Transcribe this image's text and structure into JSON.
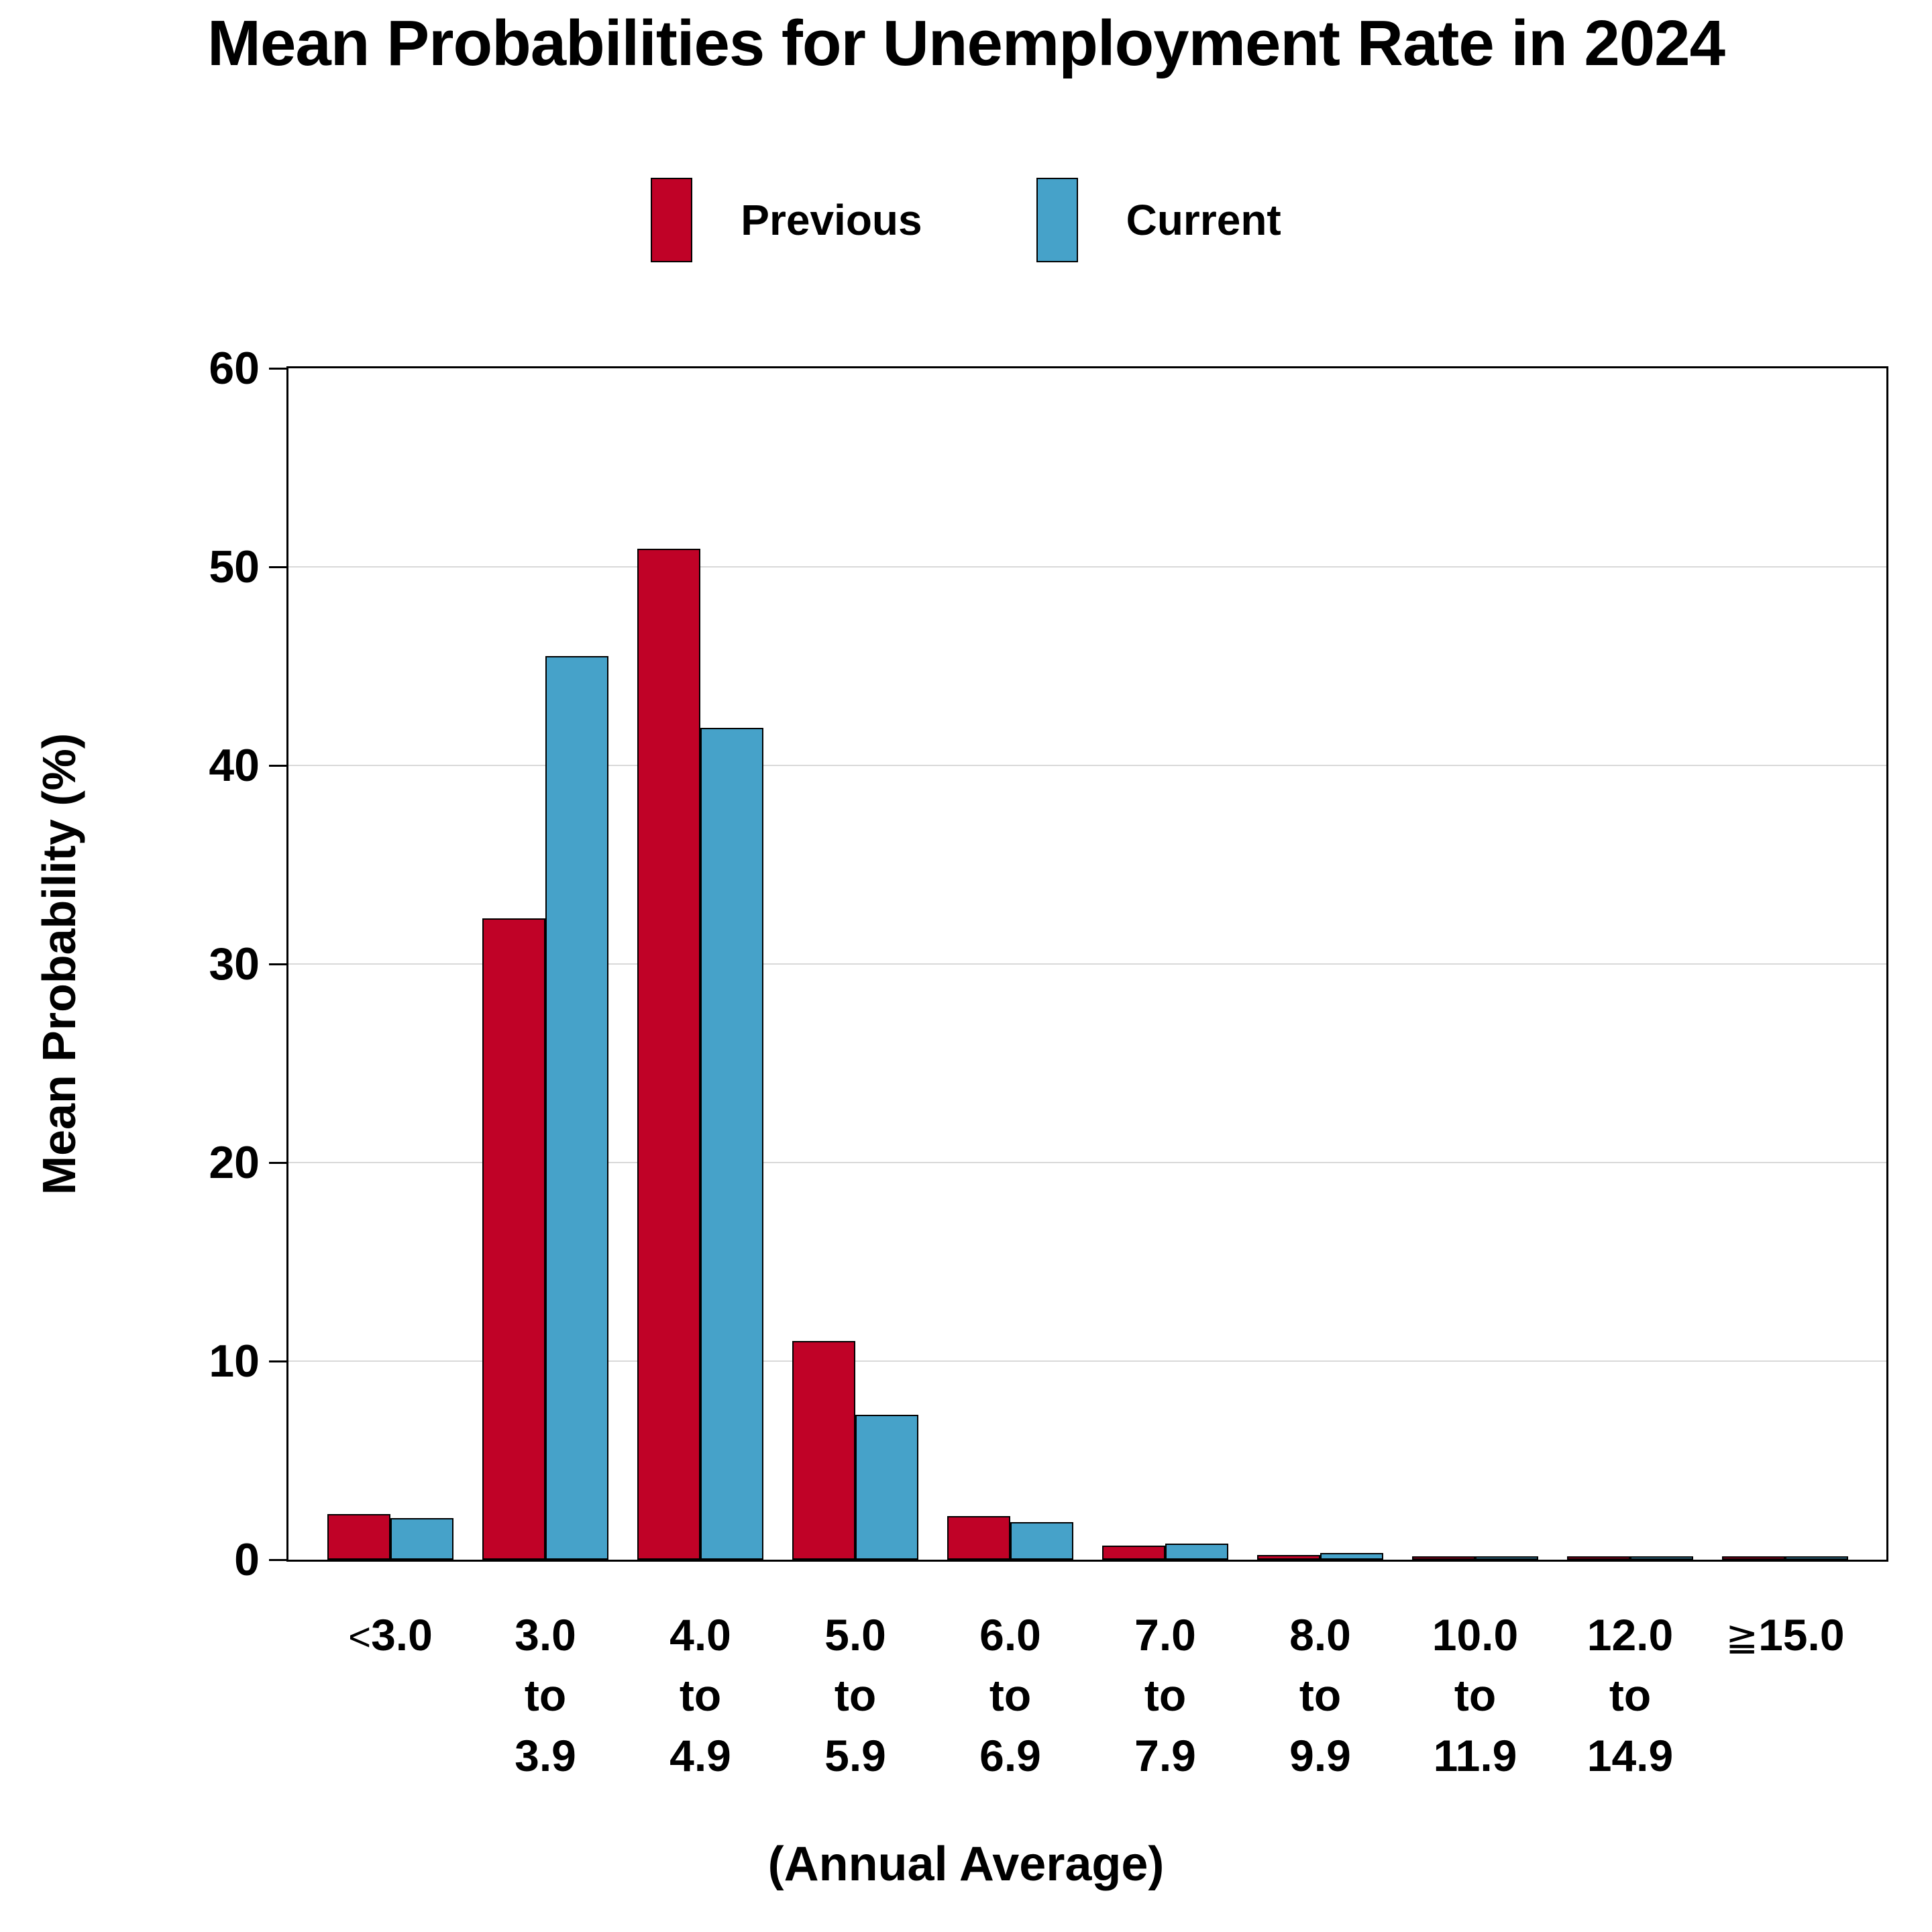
{
  "page": {
    "title": "Mean Probabilities for Unemployment Rate in 2024"
  },
  "legend": {
    "items": [
      {
        "label": "Previous",
        "color": "#c00227"
      },
      {
        "label": "Current",
        "color": "#46a2c9"
      }
    ]
  },
  "axes": {
    "y_title": "Mean Probability (%)",
    "x_title": "(Annual Average)",
    "y_ticks": [
      "0",
      "10",
      "20",
      "30",
      "40",
      "50",
      "60"
    ]
  },
  "colors": {
    "previous": "#c00227",
    "current": "#46a2c9",
    "grid": "#d9d9d9",
    "axis": "#000000",
    "text": "#000000",
    "background": "#ffffff"
  },
  "chart_data": {
    "type": "bar",
    "title": "Mean Probabilities for Unemployment Rate in 2024",
    "categories": [
      "<3.0",
      "3.0\nto\n3.9",
      "4.0\nto\n4.9",
      "5.0\nto\n5.9",
      "6.0\nto\n6.9",
      "7.0\nto\n7.9",
      "8.0\nto\n9.9",
      "10.0\nto\n11.9",
      "12.0\nto\n14.9",
      "≧15.0"
    ],
    "series": [
      {
        "name": "Previous",
        "color": "#c00227",
        "values": [
          2.3,
          32.3,
          50.9,
          11.0,
          2.2,
          0.7,
          0.25,
          0.15,
          0.1,
          0.15
        ]
      },
      {
        "name": "Current",
        "color": "#46a2c9",
        "values": [
          2.1,
          45.5,
          41.9,
          7.3,
          1.9,
          0.8,
          0.35,
          0.1,
          0.1,
          0.15
        ]
      }
    ],
    "xlabel": "(Annual Average)",
    "ylabel": "Mean Probability (%)",
    "ylim": [
      0,
      60
    ],
    "yticks": [
      0,
      10,
      20,
      30,
      40,
      50,
      60
    ],
    "grid": "horizontal gridlines at 10,20,30,40,50",
    "legend_position": "top-center"
  }
}
